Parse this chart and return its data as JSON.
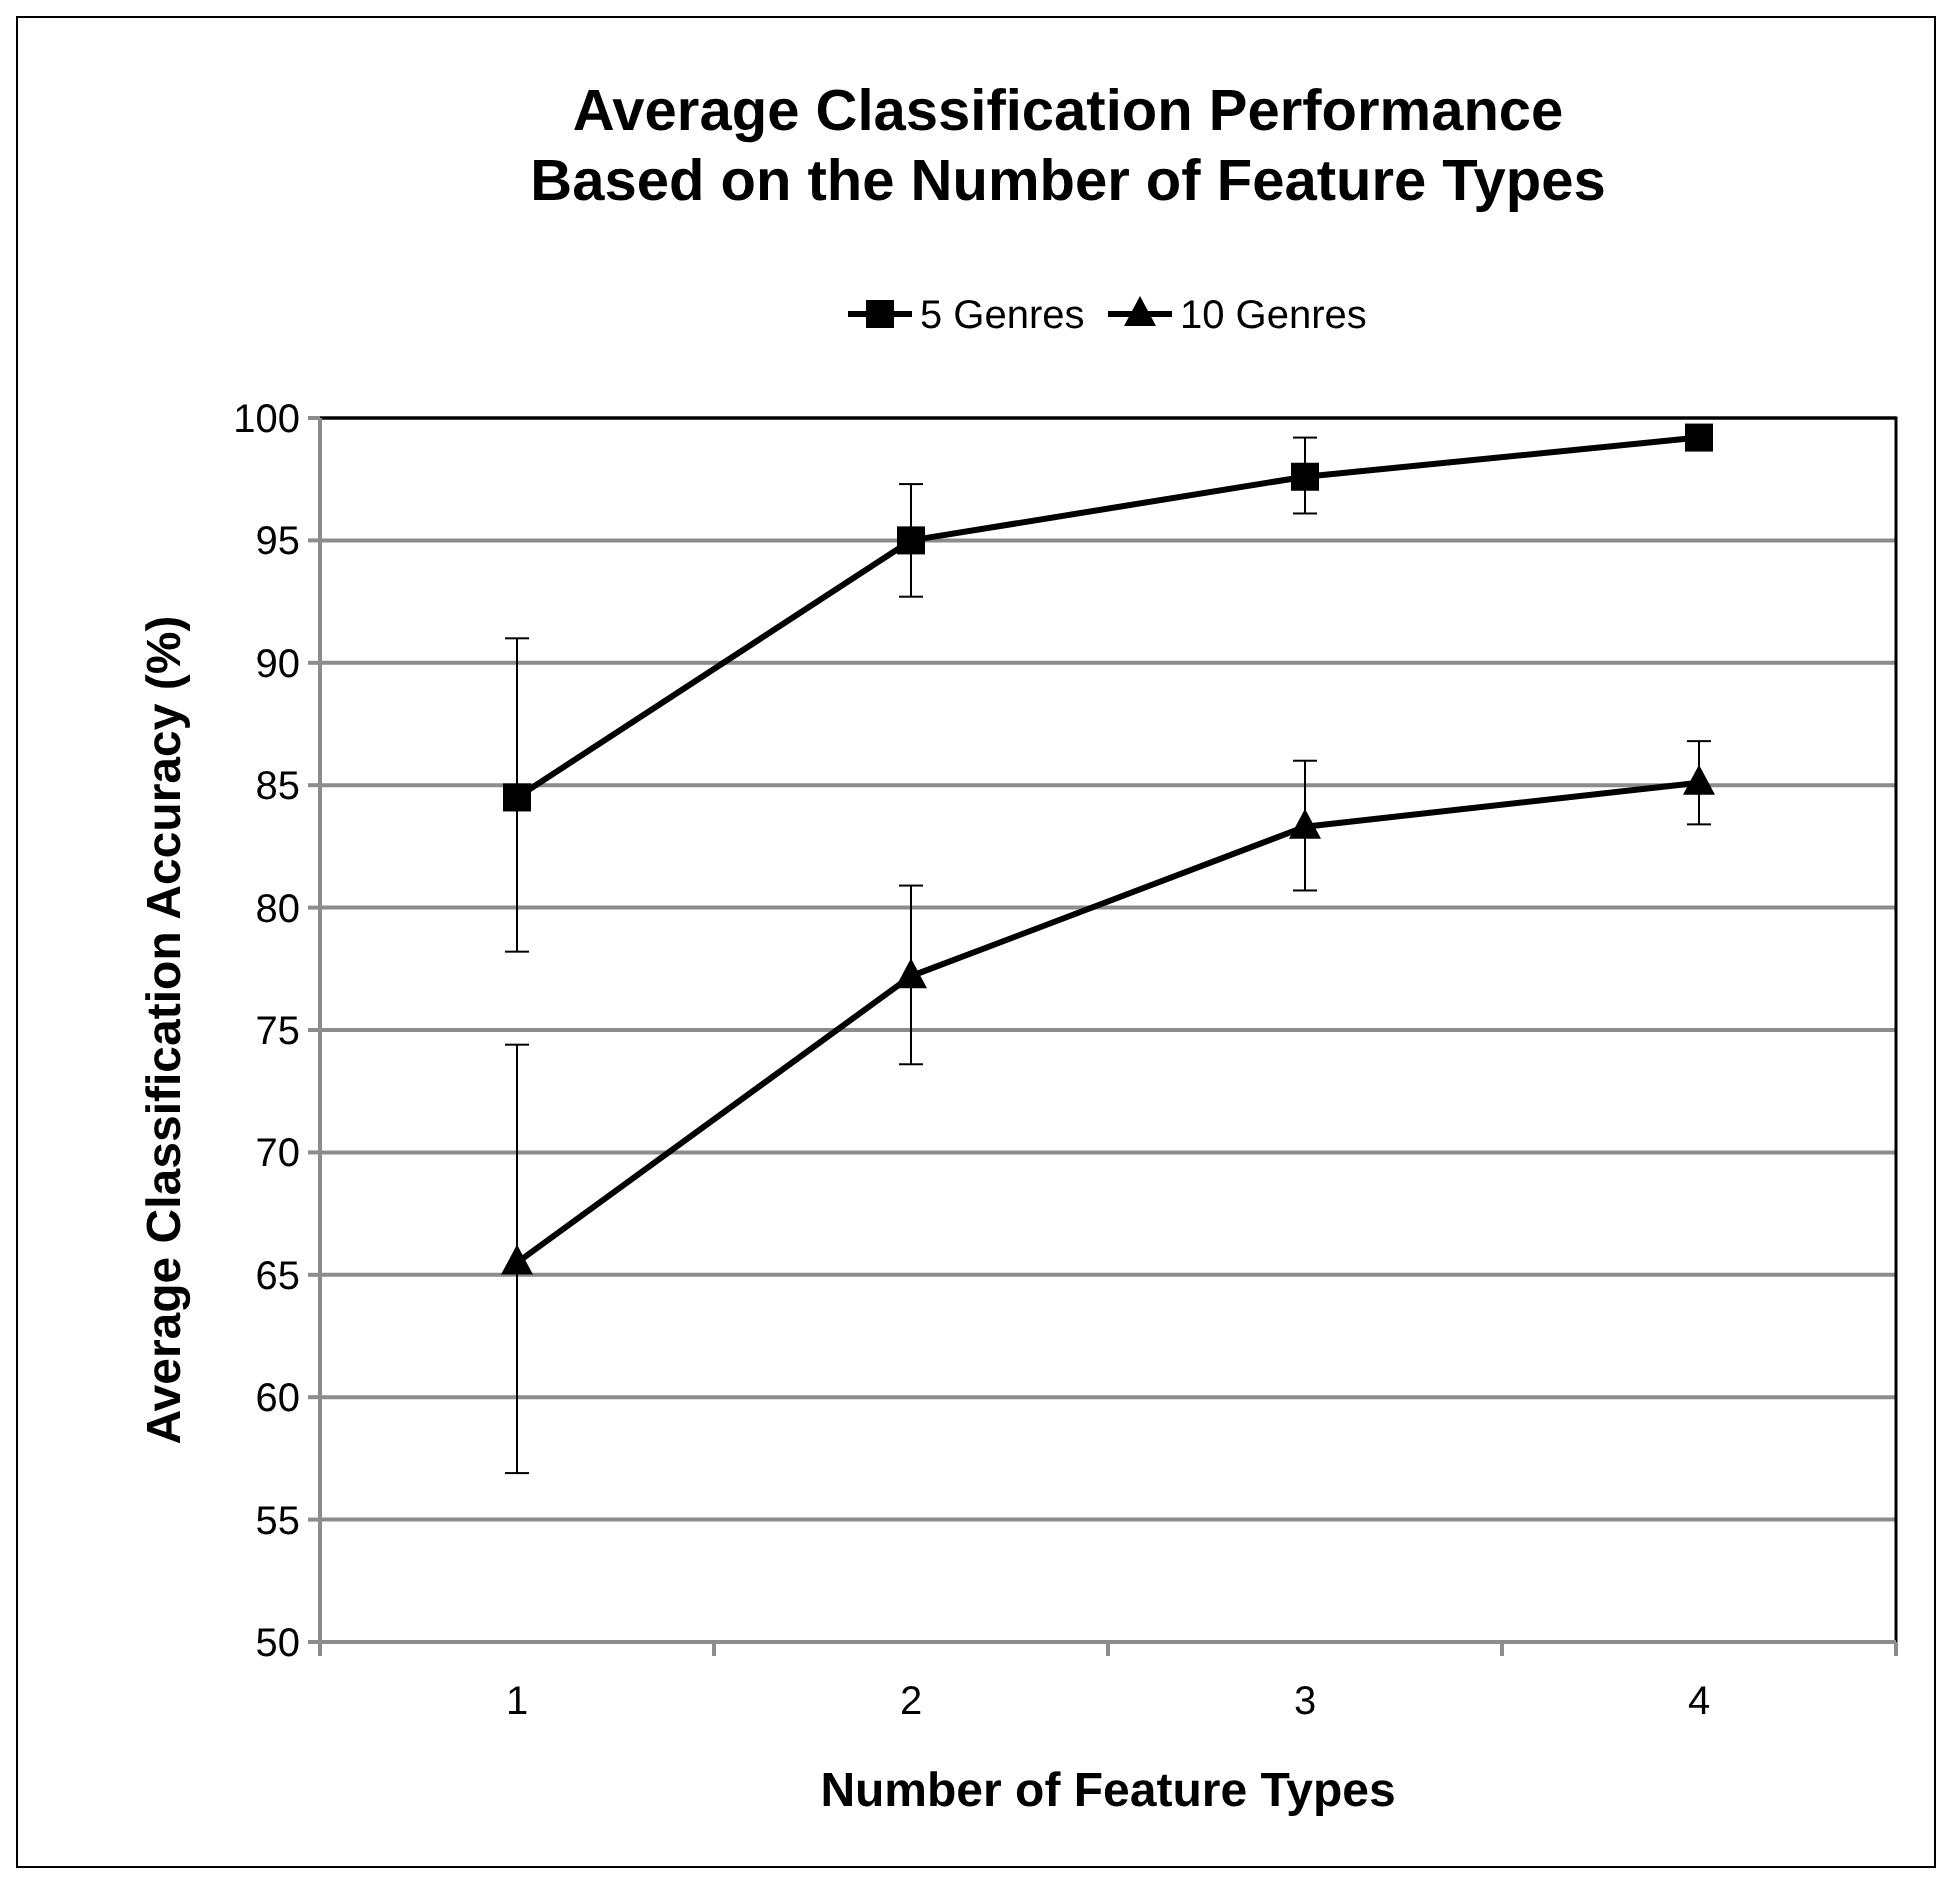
{
  "chart_data": {
    "type": "line",
    "title": "Average Classification Performance\nBased on the Number of Feature Types",
    "xlabel": "Number of Feature Types",
    "ylabel": "Average Classification Accuracy (%)",
    "categories": [
      "1",
      "2",
      "3",
      "4"
    ],
    "series": [
      {
        "name": "5 Genres",
        "color": "#000000",
        "marker": "square",
        "values": [
          84.5,
          95.0,
          97.6,
          99.2
        ],
        "errors": [
          [
            78.2,
            91.0
          ],
          [
            92.7,
            97.3
          ],
          [
            96.1,
            99.2
          ],
          null
        ]
      },
      {
        "name": "10 Genres",
        "color": "#000000",
        "marker": "triangle",
        "values": [
          65.5,
          77.2,
          83.3,
          85.1
        ],
        "errors": [
          [
            56.9,
            74.4
          ],
          [
            73.6,
            80.9
          ],
          [
            80.7,
            86.0
          ],
          [
            83.4,
            86.8
          ]
        ]
      }
    ],
    "ylim": [
      50,
      100
    ],
    "yticks": [
      50,
      55,
      60,
      65,
      70,
      75,
      80,
      85,
      90,
      95,
      100
    ],
    "grid": "y",
    "legend": "top",
    "line_style": "solid"
  }
}
